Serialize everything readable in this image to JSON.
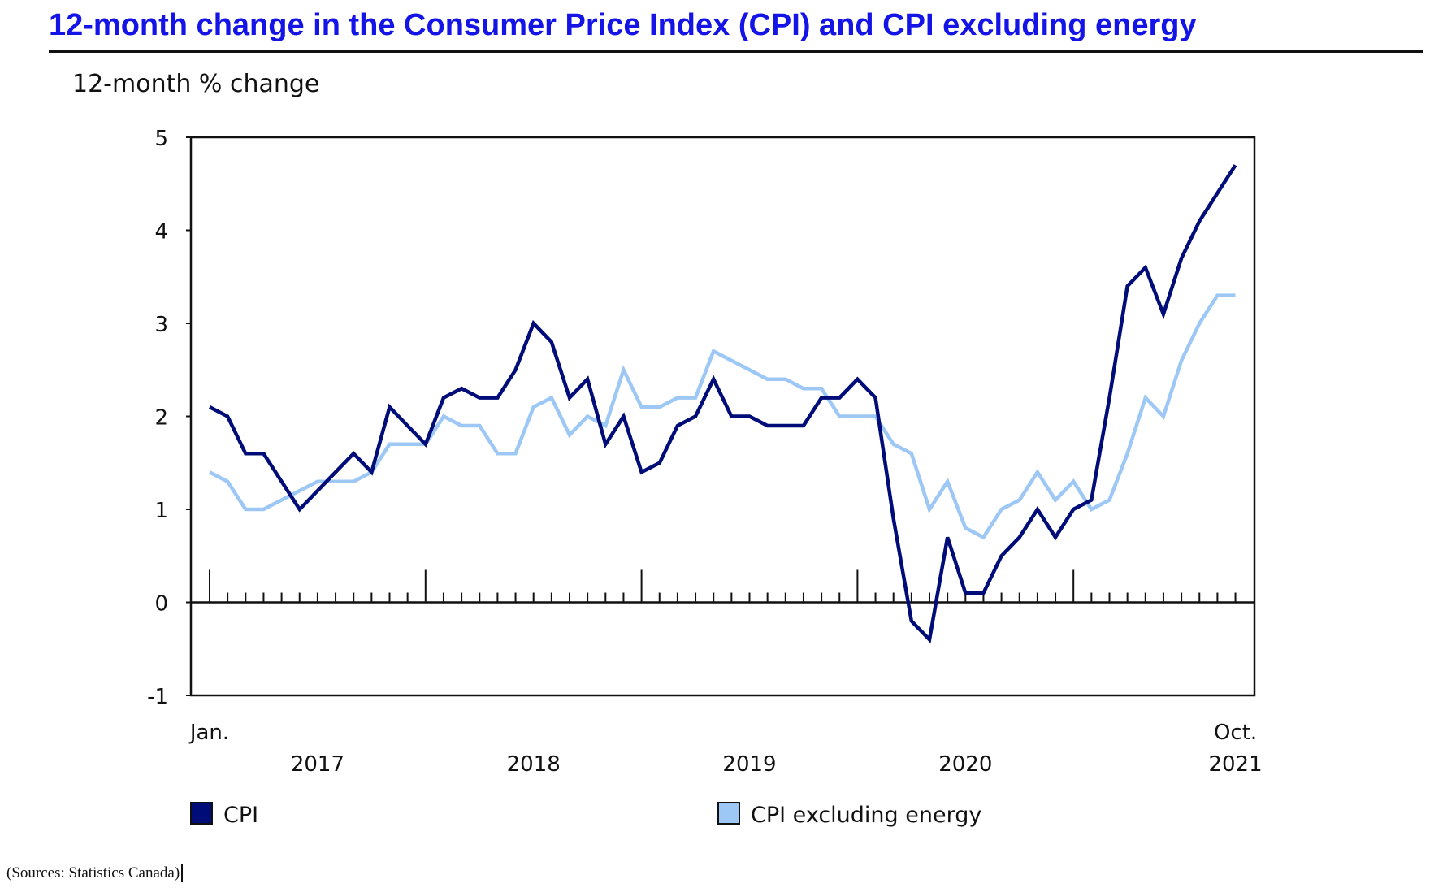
{
  "title": "12-month change in the Consumer Price Index (CPI) and CPI excluding energy",
  "sources": "(Sources: Statistics Canada)",
  "chart_data": {
    "type": "line",
    "title": "12-month change in the Consumer Price Index (CPI) and CPI excluding energy",
    "ylabel": "12-month % change",
    "xlabel": "",
    "x_range": [
      "Jan. 2017",
      "Oct. 2021"
    ],
    "x_start_label": "Jan.",
    "x_end_label": "Oct.",
    "year_labels": [
      "2017",
      "2018",
      "2019",
      "2020",
      "2021"
    ],
    "ylim": [
      -1,
      5
    ],
    "yticks": [
      "5",
      "4",
      "3",
      "2",
      "1",
      "0",
      "-1"
    ],
    "grid": false,
    "legend_position": "bottom",
    "series": [
      {
        "name": "CPI",
        "color": "#000c78",
        "values": [
          2.1,
          2.0,
          1.6,
          1.6,
          1.3,
          1.0,
          1.2,
          1.4,
          1.6,
          1.4,
          2.1,
          1.9,
          1.7,
          2.2,
          2.3,
          2.2,
          2.2,
          2.5,
          3.0,
          2.8,
          2.2,
          2.4,
          1.7,
          2.0,
          1.4,
          1.5,
          1.9,
          2.0,
          2.4,
          2.0,
          2.0,
          1.9,
          1.9,
          1.9,
          2.2,
          2.2,
          2.4,
          2.2,
          0.9,
          -0.2,
          -0.4,
          0.7,
          0.1,
          0.1,
          0.5,
          0.7,
          1.0,
          0.7,
          1.0,
          1.1,
          2.2,
          3.4,
          3.6,
          3.1,
          3.7,
          4.1,
          4.4,
          4.7
        ]
      },
      {
        "name": "CPI excluding energy",
        "color": "#9dc8f5",
        "values": [
          1.4,
          1.3,
          1.0,
          1.0,
          1.1,
          1.2,
          1.3,
          1.3,
          1.3,
          1.4,
          1.7,
          1.7,
          1.7,
          2.0,
          1.9,
          1.9,
          1.6,
          1.6,
          2.1,
          2.2,
          1.8,
          2.0,
          1.9,
          2.5,
          2.1,
          2.1,
          2.2,
          2.2,
          2.7,
          2.6,
          2.5,
          2.4,
          2.4,
          2.3,
          2.3,
          2.0,
          2.0,
          2.0,
          1.7,
          1.6,
          1.0,
          1.3,
          0.8,
          0.7,
          1.0,
          1.1,
          1.4,
          1.1,
          1.3,
          1.0,
          1.1,
          1.6,
          2.2,
          2.0,
          2.6,
          3.0,
          3.3,
          3.3
        ]
      }
    ]
  }
}
